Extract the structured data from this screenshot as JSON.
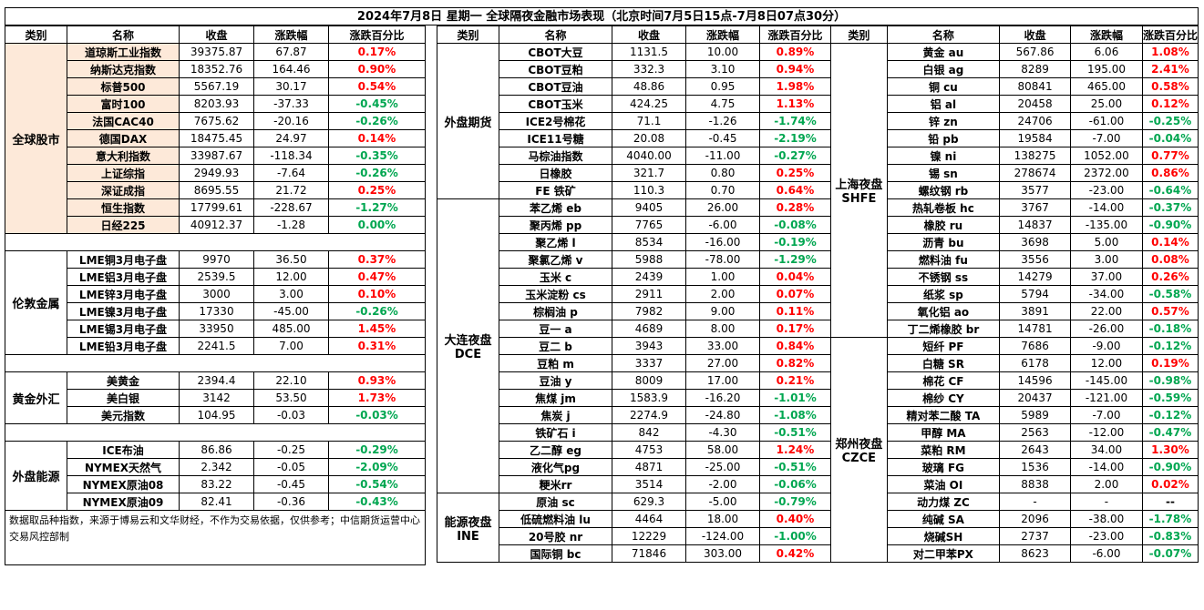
{
  "title": "2024年7月8日 星期一 全球隔夜金融市场表现（北京时间7月5日15点-7月8日07点30分）",
  "headers": [
    "类别",
    "名称",
    "收盘",
    "涨跌幅",
    "涨跌百分比"
  ],
  "colors": {
    "up": "#ff0000",
    "down": "#00a650",
    "highlight": "#fde9d9"
  },
  "left": {
    "global_stocks": {
      "category": "全球股市",
      "rows": [
        {
          "name": "道琼斯工业指数",
          "close": "39375.87",
          "chg": "67.87",
          "pct": "0.17%"
        },
        {
          "name": "纳斯达克指数",
          "close": "18352.76",
          "chg": "164.46",
          "pct": "0.90%"
        },
        {
          "name": "标普500",
          "close": "5567.19",
          "chg": "30.17",
          "pct": "0.54%"
        },
        {
          "name": "富时100",
          "close": "8203.93",
          "chg": "-37.33",
          "pct": "-0.45%"
        },
        {
          "name": "法国CAC40",
          "close": "7675.62",
          "chg": "-20.16",
          "pct": "-0.26%"
        },
        {
          "name": "德国DAX",
          "close": "18475.45",
          "chg": "24.97",
          "pct": "0.14%"
        },
        {
          "name": "意大利指数",
          "close": "33987.67",
          "chg": "-118.34",
          "pct": "-0.35%"
        },
        {
          "name": "上证综指",
          "close": "2949.93",
          "chg": "-7.64",
          "pct": "-0.26%"
        },
        {
          "name": "深证成指",
          "close": "8695.55",
          "chg": "21.72",
          "pct": "0.25%"
        },
        {
          "name": "恒生指数",
          "close": "17799.61",
          "chg": "-228.67",
          "pct": "-1.27%"
        },
        {
          "name": "日经225",
          "close": "40912.37",
          "chg": "-1.28",
          "pct": "0.00%"
        }
      ]
    },
    "london_metals": {
      "category": "伦敦金属",
      "rows": [
        {
          "name": "LME铜3月电子盘",
          "close": "9970",
          "chg": "36.50",
          "pct": "0.37%"
        },
        {
          "name": "LME铝3月电子盘",
          "close": "2539.5",
          "chg": "12.00",
          "pct": "0.47%"
        },
        {
          "name": "LME锌3月电子盘",
          "close": "3000",
          "chg": "3.00",
          "pct": "0.10%"
        },
        {
          "name": "LME镍3月电子盘",
          "close": "17330",
          "chg": "-45.00",
          "pct": "-0.26%"
        },
        {
          "name": "LME锡3月电子盘",
          "close": "33950",
          "chg": "485.00",
          "pct": "1.45%"
        },
        {
          "name": "LME铅3月电子盘",
          "close": "2241.5",
          "chg": "7.00",
          "pct": "0.31%"
        }
      ]
    },
    "gold_fx": {
      "category": "黄金外汇",
      "rows": [
        {
          "name": "美黄金",
          "close": "2394.4",
          "chg": "22.10",
          "pct": "0.93%"
        },
        {
          "name": "美白银",
          "close": "3142",
          "chg": "53.50",
          "pct": "1.73%"
        },
        {
          "name": "美元指数",
          "close": "104.95",
          "chg": "-0.03",
          "pct": "-0.03%"
        }
      ]
    },
    "energy": {
      "category": "外盘能源",
      "rows": [
        {
          "name": "ICE布油",
          "close": "86.86",
          "chg": "-0.25",
          "pct": "-0.29%"
        },
        {
          "name": "NYMEX天然气",
          "close": "2.342",
          "chg": "-0.05",
          "pct": "-2.09%"
        },
        {
          "name": "NYMEX原油08",
          "close": "83.22",
          "chg": "-0.45",
          "pct": "-0.54%"
        },
        {
          "name": "NYMEX原油09",
          "close": "82.41",
          "chg": "-0.36",
          "pct": "-0.43%"
        }
      ]
    },
    "note": "数据取品种指数，来源于博易云和文华财经，不作为交易依据，仅供参考；中信期货运营中心交易风控部制"
  },
  "middle": {
    "foreign_futures": {
      "category": "外盘期货",
      "rows": [
        {
          "name": "CBOT大豆",
          "close": "1131.5",
          "chg": "10.00",
          "pct": "0.89%"
        },
        {
          "name": "CBOT豆粕",
          "close": "332.3",
          "chg": "3.10",
          "pct": "0.94%"
        },
        {
          "name": "CBOT豆油",
          "close": "48.86",
          "chg": "0.95",
          "pct": "1.98%"
        },
        {
          "name": "CBOT玉米",
          "close": "424.25",
          "chg": "4.75",
          "pct": "1.13%"
        },
        {
          "name": "ICE2号棉花",
          "close": "71.1",
          "chg": "-1.26",
          "pct": "-1.74%"
        },
        {
          "name": "ICE11号糖",
          "close": "20.08",
          "chg": "-0.45",
          "pct": "-2.19%"
        },
        {
          "name": "马棕油指数",
          "close": "4040.00",
          "chg": "-11.00",
          "pct": "-0.27%"
        },
        {
          "name": "日橡胶",
          "close": "321.7",
          "chg": "0.80",
          "pct": "0.25%"
        },
        {
          "name": "FE 铁矿",
          "close": "110.3",
          "chg": "0.70",
          "pct": "0.64%"
        }
      ]
    },
    "dce": {
      "category": "大连夜盘",
      "category2": "DCE",
      "rows": [
        {
          "name": "苯乙烯 eb",
          "close": "9405",
          "chg": "26.00",
          "pct": "0.28%"
        },
        {
          "name": "聚丙烯 pp",
          "close": "7765",
          "chg": "-6.00",
          "pct": "-0.08%"
        },
        {
          "name": "聚乙烯 l",
          "close": "8534",
          "chg": "-16.00",
          "pct": "-0.19%"
        },
        {
          "name": "聚氯乙烯 v",
          "close": "5988",
          "chg": "-78.00",
          "pct": "-1.29%"
        },
        {
          "name": "玉米 c",
          "close": "2439",
          "chg": "1.00",
          "pct": "0.04%"
        },
        {
          "name": "玉米淀粉 cs",
          "close": "2911",
          "chg": "2.00",
          "pct": "0.07%"
        },
        {
          "name": "棕榈油 p",
          "close": "7982",
          "chg": "9.00",
          "pct": "0.11%"
        },
        {
          "name": "豆一 a",
          "close": "4689",
          "chg": "8.00",
          "pct": "0.17%"
        },
        {
          "name": "豆二 b",
          "close": "3943",
          "chg": "33.00",
          "pct": "0.84%"
        },
        {
          "name": "豆粕 m",
          "close": "3337",
          "chg": "27.00",
          "pct": "0.82%"
        },
        {
          "name": "豆油 y",
          "close": "8009",
          "chg": "17.00",
          "pct": "0.21%"
        },
        {
          "name": "焦煤 jm",
          "close": "1583.9",
          "chg": "-16.20",
          "pct": "-1.01%"
        },
        {
          "name": "焦炭 j",
          "close": "2274.9",
          "chg": "-24.80",
          "pct": "-1.08%"
        },
        {
          "name": "铁矿石 i",
          "close": "842",
          "chg": "-4.30",
          "pct": "-0.51%"
        },
        {
          "name": "乙二醇 eg",
          "close": "4753",
          "chg": "58.00",
          "pct": "1.24%"
        },
        {
          "name": "液化气pg",
          "close": "4871",
          "chg": "-25.00",
          "pct": "-0.51%"
        },
        {
          "name": "粳米rr",
          "close": "3514",
          "chg": "-2.00",
          "pct": "-0.06%"
        }
      ]
    },
    "ine": {
      "category": "能源夜盘",
      "category2": "INE",
      "rows": [
        {
          "name": "原油 sc",
          "close": "629.3",
          "chg": "-5.00",
          "pct": "-0.79%"
        },
        {
          "name": "低硫燃料油 lu",
          "close": "4464",
          "chg": "18.00",
          "pct": "0.40%"
        },
        {
          "name": "20号胶 nr",
          "close": "12229",
          "chg": "-124.00",
          "pct": "-1.00%"
        },
        {
          "name": "国际铜 bc",
          "close": "71846",
          "chg": "303.00",
          "pct": "0.42%"
        }
      ]
    }
  },
  "right": {
    "shfe": {
      "category": "上海夜盘",
      "category2": "SHFE",
      "rows": [
        {
          "name": "黄金 au",
          "close": "567.86",
          "chg": "6.06",
          "pct": "1.08%"
        },
        {
          "name": "白银 ag",
          "close": "8289",
          "chg": "195.00",
          "pct": "2.41%"
        },
        {
          "name": "铜 cu",
          "close": "80841",
          "chg": "465.00",
          "pct": "0.58%"
        },
        {
          "name": "铝 al",
          "close": "20458",
          "chg": "25.00",
          "pct": "0.12%"
        },
        {
          "name": "锌 zn",
          "close": "24706",
          "chg": "-61.00",
          "pct": "-0.25%"
        },
        {
          "name": "铅 pb",
          "close": "19584",
          "chg": "-7.00",
          "pct": "-0.04%"
        },
        {
          "name": "镍 ni",
          "close": "138275",
          "chg": "1052.00",
          "pct": "0.77%"
        },
        {
          "name": "锡 sn",
          "close": "278674",
          "chg": "2372.00",
          "pct": "0.86%"
        },
        {
          "name": "螺纹钢 rb",
          "close": "3577",
          "chg": "-23.00",
          "pct": "-0.64%"
        },
        {
          "name": "热轧卷板 hc",
          "close": "3767",
          "chg": "-14.00",
          "pct": "-0.37%"
        },
        {
          "name": "橡胶 ru",
          "close": "14837",
          "chg": "-135.00",
          "pct": "-0.90%"
        },
        {
          "name": "沥青 bu",
          "close": "3698",
          "chg": "5.00",
          "pct": "0.14%"
        },
        {
          "name": "燃料油 fu",
          "close": "3556",
          "chg": "3.00",
          "pct": "0.08%"
        },
        {
          "name": "不锈钢 ss",
          "close": "14279",
          "chg": "37.00",
          "pct": "0.26%"
        },
        {
          "name": "纸浆 sp",
          "close": "5794",
          "chg": "-34.00",
          "pct": "-0.58%"
        },
        {
          "name": "氧化铝 ao",
          "close": "3891",
          "chg": "22.00",
          "pct": "0.57%"
        },
        {
          "name": "丁二烯橡胶 br",
          "close": "14781",
          "chg": "-26.00",
          "pct": "-0.18%"
        }
      ]
    },
    "czce": {
      "category": "郑州夜盘",
      "category2": "CZCE",
      "rows": [
        {
          "name": "短纤 PF",
          "close": "7686",
          "chg": "-9.00",
          "pct": "-0.12%"
        },
        {
          "name": "白糖 SR",
          "close": "6178",
          "chg": "12.00",
          "pct": "0.19%"
        },
        {
          "name": "棉花 CF",
          "close": "14596",
          "chg": "-145.00",
          "pct": "-0.98%"
        },
        {
          "name": "棉纱 CY",
          "close": "20437",
          "chg": "-121.00",
          "pct": "-0.59%"
        },
        {
          "name": "精对苯二酸 TA",
          "close": "5989",
          "chg": "-7.00",
          "pct": "-0.12%"
        },
        {
          "name": "甲醇 MA",
          "close": "2563",
          "chg": "-12.00",
          "pct": "-0.47%"
        },
        {
          "name": "菜粕 RM",
          "close": "2643",
          "chg": "34.00",
          "pct": "1.30%"
        },
        {
          "name": "玻璃 FG",
          "close": "1536",
          "chg": "-14.00",
          "pct": "-0.90%"
        },
        {
          "name": "菜油 OI",
          "close": "8838",
          "chg": "2.00",
          "pct": "0.02%"
        },
        {
          "name": "动力煤 ZC",
          "close": "-",
          "chg": "-",
          "pct": "--"
        },
        {
          "name": "纯碱 SA",
          "close": "2096",
          "chg": "-38.00",
          "pct": "-1.78%"
        },
        {
          "name": "烧碱SH",
          "close": "2737",
          "chg": "-23.00",
          "pct": "-0.83%"
        },
        {
          "name": "对二甲苯PX",
          "close": "8623",
          "chg": "-6.00",
          "pct": "-0.07%"
        }
      ]
    }
  }
}
